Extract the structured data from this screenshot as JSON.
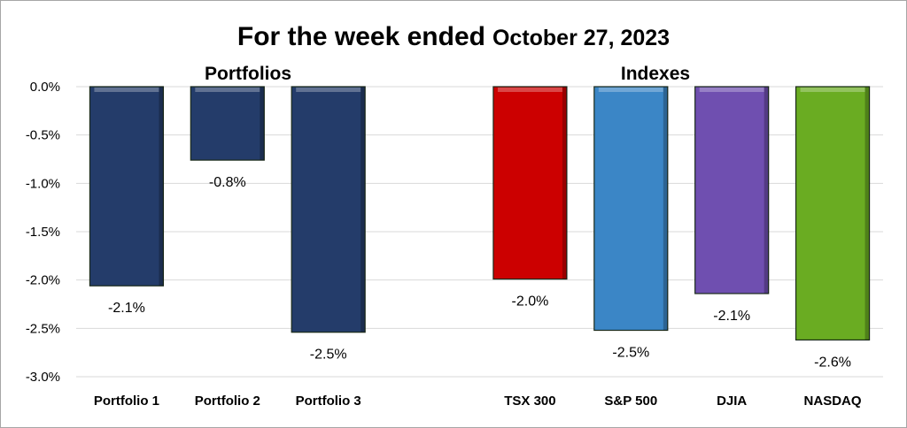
{
  "chart_data": {
    "type": "bar",
    "title": "For the week ended",
    "title_date": "October 27, 2023",
    "xlabel": "",
    "ylabel": "",
    "ylim": [
      -3.0,
      0.0
    ],
    "yticks": [
      "0.0%",
      "-0.5%",
      "-1.0%",
      "-1.5%",
      "-2.0%",
      "-2.5%",
      "-3.0%"
    ],
    "ytick_values": [
      0,
      -0.5,
      -1.0,
      -1.5,
      -2.0,
      -2.5,
      -3.0
    ],
    "grid": true,
    "groups": [
      {
        "label": "Portfolios"
      },
      {
        "label": "Indexes"
      }
    ],
    "categories": [
      "Portfolio 1",
      "Portfolio 2",
      "Portfolio 3",
      "",
      "TSX 300",
      "S&P 500",
      "DJIA",
      "NASDAQ"
    ],
    "values": [
      -2.06,
      -0.76,
      -2.54,
      null,
      -1.99,
      -2.52,
      -2.14,
      -2.62
    ],
    "data_labels": [
      "-2.1%",
      "-0.8%",
      "-2.5%",
      "",
      "-2.0%",
      "-2.5%",
      "-2.1%",
      "-2.6%"
    ],
    "colors": [
      "#243c6a",
      "#243c6a",
      "#243c6a",
      "",
      "#cc0000",
      "#3b86c6",
      "#6f4fb0",
      "#6aac22"
    ]
  }
}
